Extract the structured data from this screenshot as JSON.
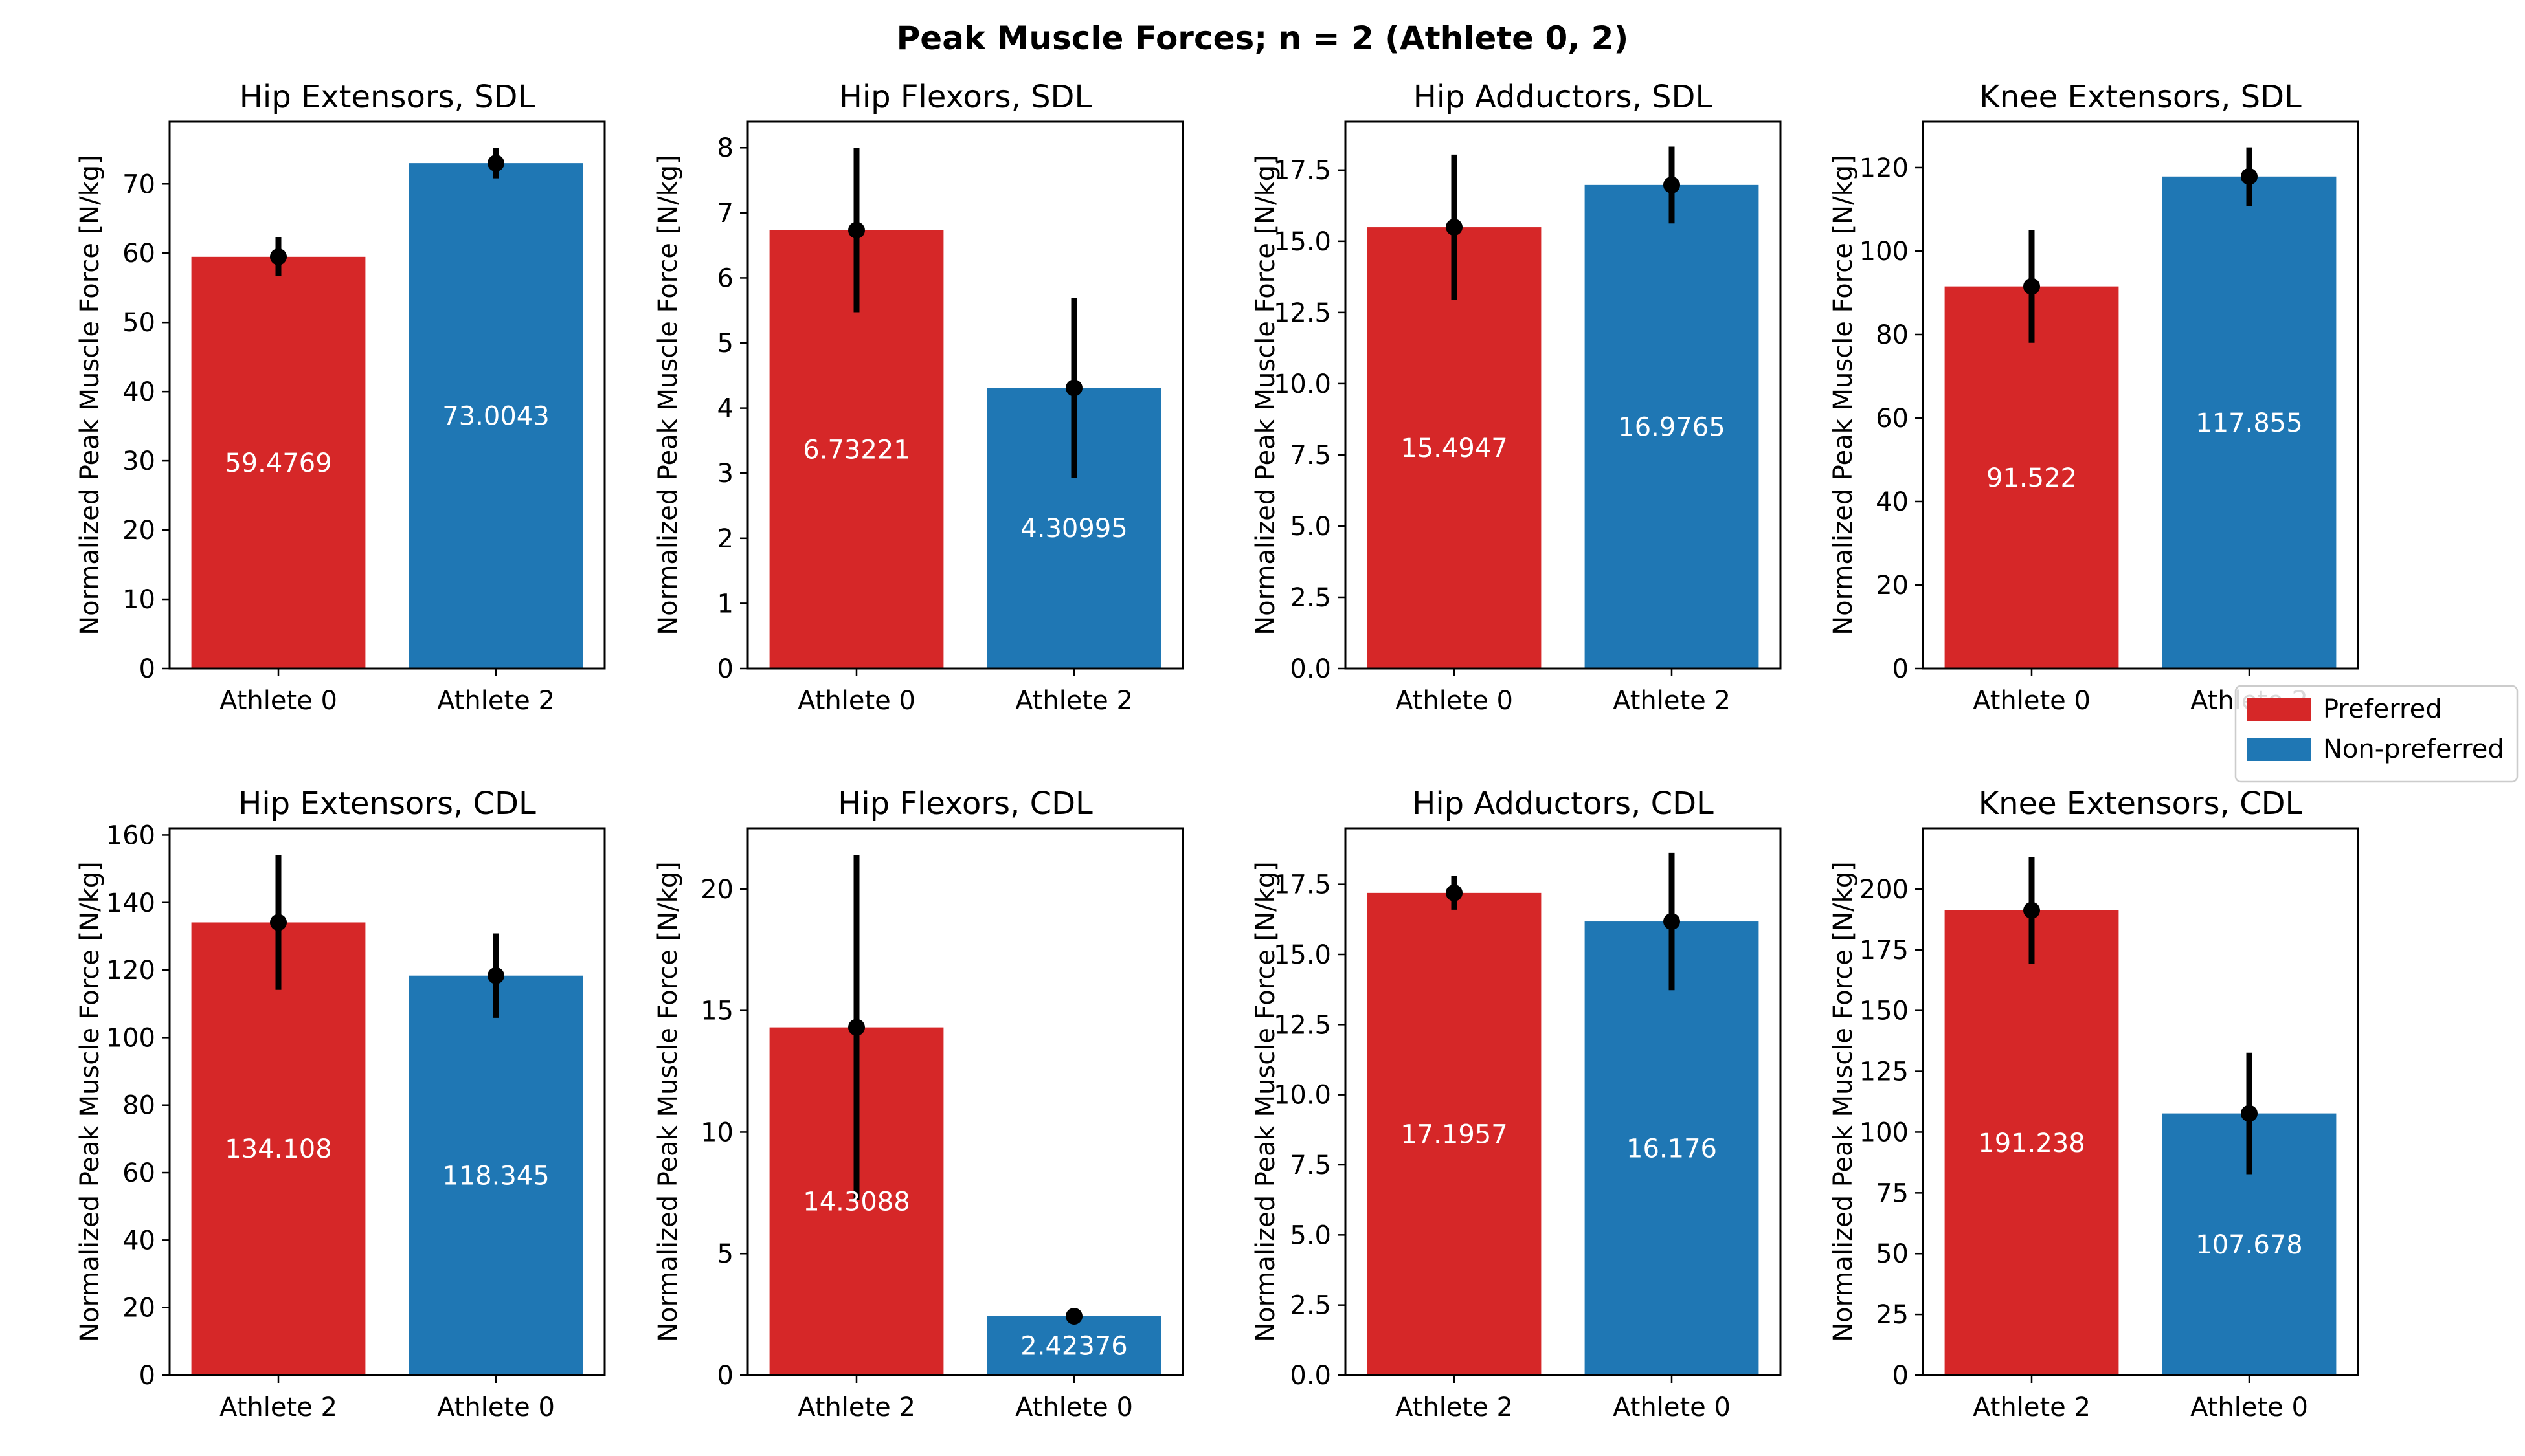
{
  "figure": {
    "title": "Peak Muscle Forces; n = 2 (Athlete 0, 2)"
  },
  "legend": {
    "placement": "right, between rows",
    "entries": [
      {
        "label": "Preferred",
        "color": "#d62728"
      },
      {
        "label": "Non-preferred",
        "color": "#1f77b4"
      }
    ]
  },
  "chart_data": [
    {
      "type": "bar",
      "title": "Hip Extensors, SDL",
      "ylabel": "Normalized Peak Muscle Force [N/kg]",
      "categories": [
        "Athlete 0",
        "Athlete 2"
      ],
      "values": [
        59.4769,
        73.0043
      ],
      "value_labels": [
        "59.4769",
        "73.0043"
      ],
      "error": [
        2.8,
        2.2
      ],
      "colors": [
        "#d62728",
        "#1f77b4"
      ],
      "ylim": [
        0,
        79
      ],
      "yticks": [
        0,
        10,
        20,
        30,
        40,
        50,
        60,
        70
      ],
      "ytick_labels": [
        "0",
        "10",
        "20",
        "30",
        "40",
        "50",
        "60",
        "70"
      ]
    },
    {
      "type": "bar",
      "title": "Hip Flexors, SDL",
      "ylabel": "Normalized Peak Muscle Force [N/kg]",
      "categories": [
        "Athlete 0",
        "Athlete 2"
      ],
      "values": [
        6.73221,
        4.30995
      ],
      "value_labels": [
        "6.73221",
        "4.30995"
      ],
      "error": [
        1.26,
        1.38
      ],
      "colors": [
        "#d62728",
        "#1f77b4"
      ],
      "ylim": [
        0,
        8.4
      ],
      "yticks": [
        0,
        1,
        2,
        3,
        4,
        5,
        6,
        7,
        8
      ],
      "ytick_labels": [
        "0",
        "1",
        "2",
        "3",
        "4",
        "5",
        "6",
        "7",
        "8"
      ]
    },
    {
      "type": "bar",
      "title": "Hip Adductors, SDL",
      "ylabel": "Normalized Peak Muscle Force [N/kg]",
      "categories": [
        "Athlete 0",
        "Athlete 2"
      ],
      "values": [
        15.4947,
        16.9765
      ],
      "value_labels": [
        "15.4947",
        "16.9765"
      ],
      "error": [
        2.55,
        1.35
      ],
      "colors": [
        "#d62728",
        "#1f77b4"
      ],
      "ylim": [
        0,
        19.2
      ],
      "yticks": [
        0,
        2.5,
        5,
        7.5,
        10,
        12.5,
        15,
        17.5
      ],
      "ytick_labels": [
        "0.0",
        "2.5",
        "5.0",
        "7.5",
        "10.0",
        "12.5",
        "15.0",
        "17.5"
      ]
    },
    {
      "type": "bar",
      "title": "Knee Extensors, SDL",
      "ylabel": "Normalized Peak Muscle Force [N/kg]",
      "categories": [
        "Athlete 0",
        "Athlete 2"
      ],
      "values": [
        91.522,
        117.855
      ],
      "value_labels": [
        "91.522",
        "117.855"
      ],
      "error": [
        13.5,
        7.0
      ],
      "colors": [
        "#d62728",
        "#1f77b4"
      ],
      "ylim": [
        0,
        131
      ],
      "yticks": [
        0,
        20,
        40,
        60,
        80,
        100,
        120
      ],
      "ytick_labels": [
        "0",
        "20",
        "40",
        "60",
        "80",
        "100",
        "120"
      ]
    },
    {
      "type": "bar",
      "title": "Hip Extensors, CDL",
      "ylabel": "Normalized Peak Muscle Force [N/kg]",
      "categories": [
        "Athlete 2",
        "Athlete 0"
      ],
      "values": [
        134.108,
        118.345
      ],
      "value_labels": [
        "134.108",
        "118.345"
      ],
      "error": [
        20.0,
        12.5
      ],
      "colors": [
        "#d62728",
        "#1f77b4"
      ],
      "ylim": [
        0,
        162
      ],
      "yticks": [
        0,
        20,
        40,
        60,
        80,
        100,
        120,
        140,
        160
      ],
      "ytick_labels": [
        "0",
        "20",
        "40",
        "60",
        "80",
        "100",
        "120",
        "140",
        "160"
      ]
    },
    {
      "type": "bar",
      "title": "Hip Flexors, CDL",
      "ylabel": "Normalized Peak Muscle Force [N/kg]",
      "categories": [
        "Athlete 2",
        "Athlete 0"
      ],
      "values": [
        14.3088,
        2.42376
      ],
      "value_labels": [
        "14.3088",
        "2.42376"
      ],
      "error": [
        7.1,
        0.05
      ],
      "colors": [
        "#d62728",
        "#1f77b4"
      ],
      "ylim": [
        0,
        22.5
      ],
      "yticks": [
        0,
        5,
        10,
        15,
        20
      ],
      "ytick_labels": [
        "0",
        "5",
        "10",
        "15",
        "20"
      ]
    },
    {
      "type": "bar",
      "title": "Hip Adductors, CDL",
      "ylabel": "Normalized Peak Muscle Force [N/kg]",
      "categories": [
        "Athlete 2",
        "Athlete 0"
      ],
      "values": [
        17.1957,
        16.176
      ],
      "value_labels": [
        "17.1957",
        "16.176"
      ],
      "error": [
        0.6,
        2.45
      ],
      "colors": [
        "#d62728",
        "#1f77b4"
      ],
      "ylim": [
        0,
        19.5
      ],
      "yticks": [
        0,
        2.5,
        5,
        7.5,
        10,
        12.5,
        15,
        17.5
      ],
      "ytick_labels": [
        "0.0",
        "2.5",
        "5.0",
        "7.5",
        "10.0",
        "12.5",
        "15.0",
        "17.5"
      ]
    },
    {
      "type": "bar",
      "title": "Knee Extensors, CDL",
      "ylabel": "Normalized Peak Muscle Force [N/kg]",
      "categories": [
        "Athlete 2",
        "Athlete 0"
      ],
      "values": [
        191.238,
        107.678
      ],
      "value_labels": [
        "191.238",
        "107.678"
      ],
      "error": [
        22.0,
        25.0
      ],
      "colors": [
        "#d62728",
        "#1f77b4"
      ],
      "ylim": [
        0,
        225
      ],
      "yticks": [
        0,
        25,
        50,
        75,
        100,
        125,
        150,
        175,
        200
      ],
      "ytick_labels": [
        "0",
        "25",
        "50",
        "75",
        "100",
        "125",
        "150",
        "175",
        "200"
      ]
    }
  ]
}
